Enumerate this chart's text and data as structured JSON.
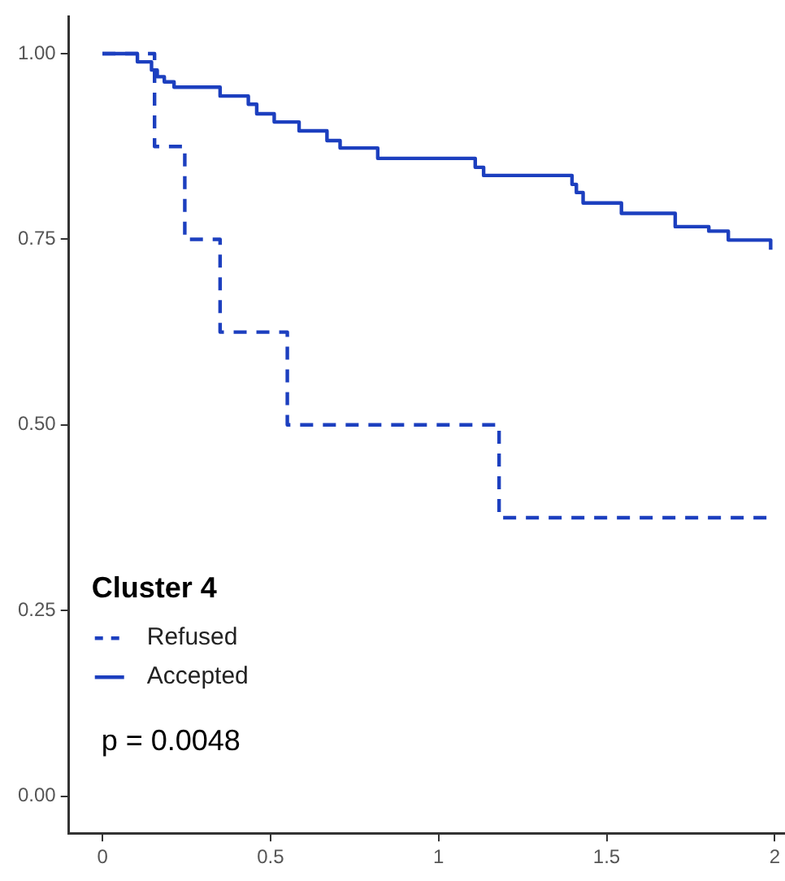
{
  "chart_data": {
    "type": "step",
    "legend_title": "Cluster 4",
    "legend": "bottom left",
    "annotations": [
      "p = 0.0048"
    ],
    "xlim": [
      -0.1,
      2.03
    ],
    "xticks": [
      0,
      0.5,
      1,
      1.5,
      2
    ],
    "ylim": [
      -0.05,
      1.05
    ],
    "yticks": [
      {
        "value": 0,
        "label": "0.00"
      },
      {
        "value": 0.25,
        "label": "0.25"
      },
      {
        "value": 0.5,
        "label": "0.50"
      },
      {
        "value": 0.75,
        "label": "0.75"
      },
      {
        "value": 1,
        "label": "1.00"
      }
    ],
    "grid": false,
    "marker": "none",
    "series": [
      {
        "name": "Refused",
        "color": "#1c3fbf",
        "line_style": "dashed",
        "x": [
          0,
          0.155,
          0.245,
          0.35,
          0.55,
          1.18,
          1.98
        ],
        "values": [
          1,
          0.875,
          0.75,
          0.625,
          0.5,
          0.375,
          0.375
        ]
      },
      {
        "name": "Accepted",
        "color": "#1c3fbf",
        "line_style": "solid",
        "x": [
          0,
          0.104,
          0.146,
          0.163,
          0.184,
          0.213,
          0.35,
          0.434,
          0.459,
          0.511,
          0.585,
          0.668,
          0.707,
          0.819,
          1.109,
          1.134,
          1.397,
          1.41,
          1.43,
          1.544,
          1.704,
          1.804,
          1.862,
          1.988
        ],
        "values": [
          1,
          0.989,
          0.978,
          0.969,
          0.962,
          0.955,
          0.943,
          0.932,
          0.919,
          0.908,
          0.896,
          0.883,
          0.873,
          0.859,
          0.847,
          0.836,
          0.824,
          0.813,
          0.799,
          0.785,
          0.767,
          0.761,
          0.749,
          0.736
        ]
      }
    ]
  }
}
